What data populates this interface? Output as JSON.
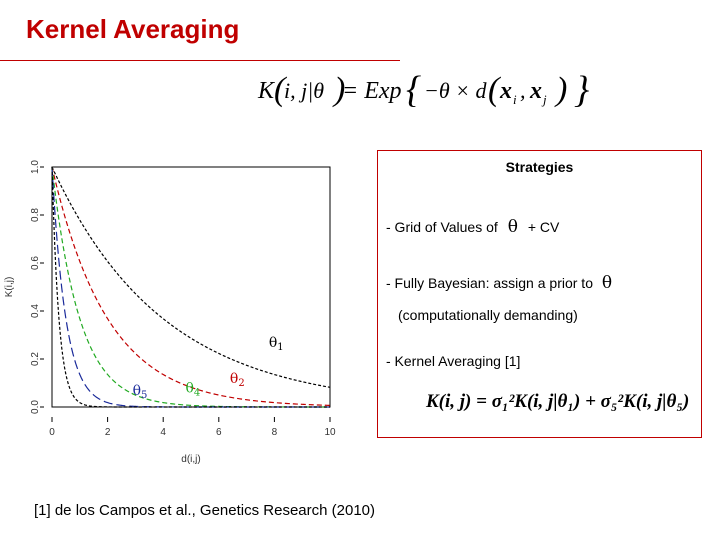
{
  "slide": {
    "title": "Kernel Averaging",
    "citation": "[1] de los Campos et al., Genetics Research (2010)"
  },
  "formula_top": {
    "lhs": "K",
    "args": "i, j|θ",
    "rhs": "= Exp",
    "body": "−θ × d",
    "xi": "x",
    "xi_sub": "i",
    "xj": "x",
    "xj_sub": "j"
  },
  "strategies": {
    "title": "Strategies",
    "item1_prefix": "- Grid of Values of",
    "item1_theta": "θ",
    "item1_suffix": "+ CV",
    "item2_prefix": "-  Fully Bayesian: assign a prior to",
    "item2_theta": "θ",
    "item2_note": "(computationally demanding)",
    "item3": "-  Kernel Averaging [1]",
    "formula": "K(i, j) = σ₁²K(i, j|θ₁) + σ₅²K(i, j|θ₅)"
  },
  "chart_data": {
    "type": "line",
    "xlabel": "d(i,j)",
    "ylabel": "K(i,j)",
    "xlim": [
      0,
      10
    ],
    "ylim": [
      0,
      1
    ],
    "x_ticks": [
      "0",
      "2",
      "4",
      "6",
      "8",
      "10"
    ],
    "y_ticks": [
      "0.0",
      "0.2",
      "0.4",
      "0.6",
      "0.8",
      "1.0"
    ],
    "series": [
      {
        "name": "θ1",
        "theta": 0.25,
        "color": "#000000",
        "dash": "3,2"
      },
      {
        "name": "θ2",
        "theta": 0.5,
        "color": "#c00000",
        "dash": "5,3"
      },
      {
        "name": "θ4",
        "theta": 1.0,
        "color": "#22aa22",
        "dash": "5,3"
      },
      {
        "name": "θ5",
        "theta": 2.0,
        "color": "#1a2a9a",
        "dash": "9,4"
      },
      {
        "name": "",
        "theta": 4.0,
        "color": "#000000",
        "dash": "3,2"
      }
    ],
    "curve_labels": [
      {
        "text": "θ5",
        "x": 2.9,
        "y": 0.05,
        "color": "#1a2a9a"
      },
      {
        "text": "θ4",
        "x": 4.8,
        "y": 0.06,
        "color": "#22aa22"
      },
      {
        "text": "θ2",
        "x": 6.4,
        "y": 0.1,
        "color": "#c00000"
      },
      {
        "text": "θ1",
        "x": 7.8,
        "y": 0.25,
        "color": "#000000"
      }
    ]
  }
}
